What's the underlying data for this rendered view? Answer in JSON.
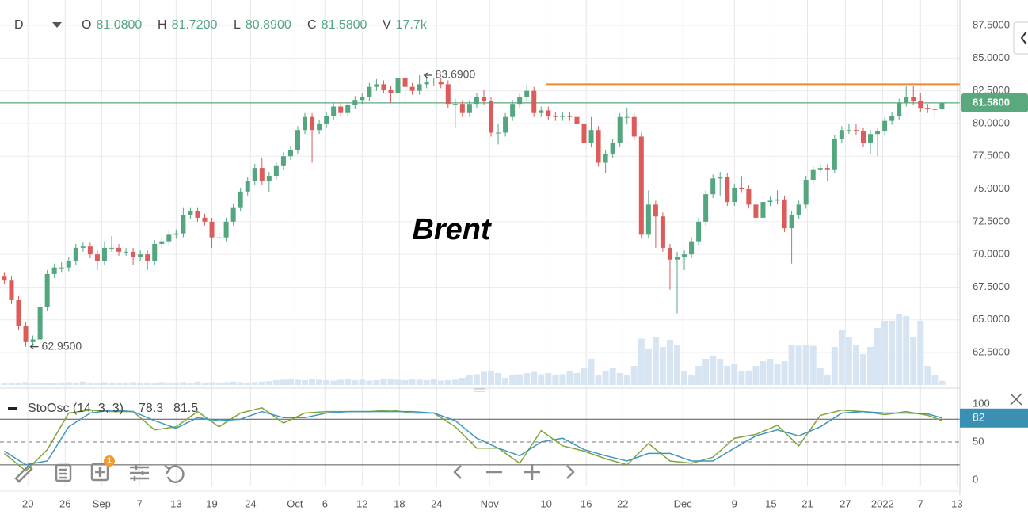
{
  "header": {
    "interval": "D",
    "ohlcv": [
      {
        "key": "O",
        "value": "81.0800"
      },
      {
        "key": "H",
        "value": "81.7200"
      },
      {
        "key": "L",
        "value": "80.8900"
      },
      {
        "key": "C",
        "value": "81.5800"
      },
      {
        "key": "V",
        "value": "17.7k"
      }
    ]
  },
  "toolbar": {
    "badge": "1"
  },
  "chart_data": [
    {
      "type": "candlestick",
      "title": "Brent",
      "open": [
        68.3,
        68.0,
        66.5,
        64.5,
        63.3,
        63.5,
        66.0,
        68.5,
        69.0,
        69.0,
        69.5,
        70.5,
        70.6,
        70.0,
        69.5,
        70.5,
        70.5,
        70.2,
        70.2,
        69.8,
        70.0,
        69.5,
        70.8,
        71.0,
        71.5,
        71.6,
        73.0,
        73.3,
        72.8,
        72.5,
        71.3,
        71.3,
        72.5,
        73.6,
        74.8,
        75.6,
        76.6,
        75.6,
        76.0,
        76.8,
        77.5,
        78.0,
        79.5,
        80.5,
        79.5,
        80.0,
        80.6,
        81.3,
        80.8,
        81.4,
        81.8,
        82.0,
        82.8,
        83.0,
        82.6,
        82.3,
        83.5,
        82.8,
        82.5,
        83.0,
        83.2,
        83.2,
        83.0,
        81.5,
        81.5,
        80.8,
        81.5,
        82.0,
        81.7,
        79.3,
        79.3,
        80.5,
        81.5,
        82.0,
        82.5,
        80.8,
        81.0,
        80.6,
        80.5,
        80.6,
        80.5,
        80.0,
        78.5,
        79.5,
        77.0,
        77.7,
        78.5,
        80.5,
        80.5,
        79.0,
        71.5,
        73.8,
        72.9,
        70.5,
        69.6,
        69.8,
        70.0,
        71.0,
        72.5,
        74.6,
        75.8,
        75.9,
        74.0,
        75.1,
        75.0,
        73.8,
        72.8,
        74.0,
        74.1,
        74.2,
        72.0,
        73.0,
        73.8,
        75.7,
        76.5,
        76.6,
        76.5,
        78.8,
        79.5,
        79.5,
        79.4,
        78.5,
        79.2,
        79.4,
        80.2,
        80.6,
        81.6,
        82.0,
        81.7,
        81.2,
        81.1,
        81.08
      ],
      "high": [
        68.6,
        68.3,
        66.8,
        64.8,
        63.8,
        66.3,
        68.8,
        69.3,
        69.4,
        69.8,
        70.8,
        70.9,
        70.9,
        70.3,
        71.0,
        71.4,
        70.8,
        70.5,
        70.5,
        70.3,
        70.3,
        71.1,
        71.3,
        71.8,
        71.9,
        73.6,
        73.6,
        73.6,
        73.1,
        72.8,
        71.9,
        72.8,
        73.9,
        75.1,
        75.9,
        76.9,
        77.4,
        76.3,
        77.1,
        77.8,
        78.3,
        79.8,
        80.8,
        80.8,
        80.3,
        80.9,
        81.6,
        81.6,
        81.7,
        82.1,
        82.3,
        83.1,
        83.4,
        83.3,
        82.9,
        83.6,
        83.6,
        83.1,
        83.69,
        83.5,
        83.5,
        83.5,
        83.3,
        81.9,
        81.8,
        81.8,
        82.3,
        82.6,
        82.0,
        80.0,
        80.8,
        81.8,
        82.3,
        83.0,
        82.8,
        81.3,
        81.3,
        80.9,
        80.9,
        80.9,
        80.8,
        80.3,
        80.5,
        79.8,
        78.0,
        78.8,
        80.8,
        81.2,
        80.8,
        79.3,
        74.9,
        74.1,
        73.2,
        70.8,
        70.2,
        70.3,
        71.3,
        72.8,
        74.9,
        76.1,
        76.3,
        76.2,
        75.4,
        76.0,
        75.3,
        74.1,
        74.3,
        74.4,
        74.9,
        74.5,
        73.3,
        74.1,
        76.0,
        76.8,
        76.9,
        76.9,
        79.1,
        79.8,
        80.0,
        80.0,
        79.7,
        79.5,
        79.7,
        80.5,
        80.9,
        81.9,
        82.9,
        82.9,
        82.3,
        81.5,
        81.4,
        81.72
      ],
      "low": [
        67.7,
        66.2,
        64.2,
        62.95,
        63.0,
        63.2,
        65.7,
        68.2,
        68.6,
        68.7,
        69.2,
        70.2,
        69.7,
        68.8,
        69.2,
        70.2,
        69.9,
        69.9,
        69.2,
        69.5,
        68.8,
        69.2,
        70.5,
        70.7,
        71.2,
        71.3,
        72.7,
        72.5,
        72.2,
        70.5,
        70.6,
        71.0,
        72.2,
        73.3,
        74.5,
        75.3,
        75.3,
        74.8,
        75.7,
        76.5,
        77.2,
        77.7,
        79.2,
        77.0,
        79.2,
        79.7,
        80.3,
        80.5,
        80.5,
        81.1,
        81.5,
        81.7,
        82.5,
        82.3,
        81.6,
        82.0,
        81.2,
        82.2,
        82.2,
        82.7,
        82.9,
        82.7,
        81.2,
        79.7,
        80.5,
        80.5,
        81.2,
        81.4,
        79.0,
        78.4,
        79.0,
        80.2,
        81.2,
        81.7,
        80.5,
        80.5,
        80.3,
        80.2,
        80.2,
        80.2,
        79.2,
        78.2,
        78.2,
        76.7,
        76.2,
        77.4,
        78.2,
        80.0,
        78.7,
        71.2,
        71.2,
        70.5,
        70.2,
        67.3,
        65.5,
        68.8,
        69.7,
        70.7,
        72.2,
        74.3,
        74.5,
        73.7,
        73.7,
        74.7,
        73.5,
        72.5,
        72.5,
        73.7,
        73.8,
        71.7,
        69.3,
        72.7,
        73.5,
        75.4,
        76.2,
        75.6,
        76.2,
        78.5,
        79.2,
        79.1,
        78.2,
        77.7,
        77.5,
        79.1,
        79.9,
        80.3,
        81.3,
        81.4,
        80.9,
        80.8,
        80.5,
        80.89
      ],
      "close": [
        68.0,
        66.5,
        64.5,
        63.3,
        63.5,
        66.0,
        68.5,
        69.0,
        69.0,
        69.5,
        70.5,
        70.6,
        70.0,
        69.5,
        70.5,
        70.5,
        70.2,
        70.2,
        69.8,
        70.0,
        69.5,
        70.8,
        71.0,
        71.5,
        71.6,
        73.0,
        73.3,
        72.8,
        72.5,
        71.3,
        71.3,
        72.5,
        73.6,
        74.8,
        75.6,
        76.6,
        75.6,
        76.0,
        76.8,
        77.5,
        78.0,
        79.5,
        80.5,
        79.5,
        80.0,
        80.6,
        81.3,
        80.8,
        81.4,
        81.8,
        82.0,
        82.8,
        83.0,
        82.6,
        82.3,
        83.5,
        82.8,
        82.5,
        83.0,
        83.2,
        83.2,
        83.0,
        81.5,
        81.5,
        80.8,
        81.5,
        82.0,
        81.7,
        79.3,
        79.3,
        80.5,
        81.5,
        82.0,
        82.5,
        80.8,
        81.0,
        80.6,
        80.5,
        80.6,
        80.5,
        80.0,
        78.5,
        79.5,
        77.0,
        77.7,
        78.5,
        80.5,
        80.5,
        79.0,
        71.5,
        73.8,
        72.9,
        70.5,
        69.6,
        69.8,
        70.0,
        71.0,
        72.5,
        74.6,
        75.8,
        75.9,
        74.0,
        75.1,
        75.0,
        73.8,
        72.8,
        74.0,
        74.1,
        74.2,
        72.0,
        73.0,
        73.8,
        75.7,
        76.5,
        76.6,
        76.5,
        78.8,
        79.5,
        79.5,
        79.4,
        78.5,
        79.2,
        79.4,
        80.2,
        80.6,
        81.6,
        82.0,
        81.7,
        81.2,
        81.1,
        81.08,
        81.58
      ],
      "up_color": "#54a67f",
      "down_color": "#dc5b5b",
      "volume": {
        "values": [
          10,
          8,
          8,
          12,
          10,
          8,
          10,
          8,
          10,
          12,
          10,
          14,
          8,
          10,
          12,
          10,
          8,
          10,
          12,
          10,
          8,
          10,
          12,
          10,
          8,
          12,
          10,
          14,
          10,
          12,
          10,
          12,
          14,
          12,
          10,
          12,
          14,
          16,
          20,
          22,
          24,
          22,
          20,
          24,
          22,
          20,
          18,
          22,
          24,
          20,
          22,
          18,
          20,
          24,
          26,
          22,
          20,
          24,
          22,
          20,
          24,
          18,
          20,
          22,
          30,
          40,
          45,
          55,
          60,
          50,
          30,
          40,
          45,
          50,
          55,
          45,
          50,
          40,
          45,
          60,
          50,
          70,
          110,
          40,
          60,
          70,
          50,
          40,
          80,
          195,
          150,
          200,
          160,
          190,
          170,
          60,
          40,
          80,
          110,
          120,
          110,
          80,
          90,
          60,
          60,
          80,
          100,
          110,
          90,
          100,
          170,
          165,
          170,
          165,
          70,
          40,
          160,
          230,
          200,
          170,
          130,
          160,
          240,
          270,
          270,
          300,
          290,
          200,
          270,
          80,
          40,
          17.7
        ],
        "vlim": [
          0,
          400
        ],
        "color": "#d7e5f3"
      },
      "xlim": [
        -0.6,
        133.5
      ],
      "xticks": [
        {
          "value": 3.3,
          "label": "20"
        },
        {
          "value": 8.5,
          "label": "26"
        },
        {
          "value": 13.6,
          "label": "Sep"
        },
        {
          "value": 18.9,
          "label": "7"
        },
        {
          "value": 24,
          "label": "13"
        },
        {
          "value": 29,
          "label": "19"
        },
        {
          "value": 34.4,
          "label": "24"
        },
        {
          "value": 40.6,
          "label": "Oct"
        },
        {
          "value": 44.8,
          "label": "6"
        },
        {
          "value": 50,
          "label": "12"
        },
        {
          "value": 55.2,
          "label": "18"
        },
        {
          "value": 60.4,
          "label": "24"
        },
        {
          "value": 67.8,
          "label": "Nov"
        },
        {
          "value": 75.7,
          "label": "10"
        },
        {
          "value": 81.3,
          "label": "16"
        },
        {
          "value": 86.4,
          "label": "22"
        },
        {
          "value": 94.8,
          "label": "Dec"
        },
        {
          "value": 102,
          "label": "9"
        },
        {
          "value": 107.1,
          "label": "15"
        },
        {
          "value": 112.2,
          "label": "21"
        },
        {
          "value": 117.5,
          "label": "27"
        },
        {
          "value": 122.7,
          "label": "2022"
        },
        {
          "value": 128,
          "label": "7"
        },
        {
          "value": 133.1,
          "label": "13"
        }
      ],
      "ylim": [
        59.9,
        89.44
      ],
      "yticks": [
        {
          "value": 62.5,
          "label": "62.5000"
        },
        {
          "value": 65,
          "label": "65.0000"
        },
        {
          "value": 67.5,
          "label": "67.5000"
        },
        {
          "value": 70,
          "label": "70.0000"
        },
        {
          "value": 72.5,
          "label": "72.5000"
        },
        {
          "value": 75,
          "label": "75.0000"
        },
        {
          "value": 77.5,
          "label": "77.5000"
        },
        {
          "value": 80,
          "label": "80.0000"
        },
        {
          "value": 82.5,
          "label": "82.5000"
        },
        {
          "value": 85,
          "label": "85.0000"
        },
        {
          "value": 87.5,
          "label": "87.5000"
        }
      ],
      "grid": true,
      "last_price": {
        "value": 81.58,
        "label": "81.5800",
        "color": "#5aa97e"
      },
      "levels": [
        {
          "value": 83.0,
          "from": 75.7,
          "color": "#f0892c"
        }
      ],
      "annotations": [
        {
          "x": 58,
          "value": 83.69,
          "label": "83.6900"
        },
        {
          "x": 3,
          "value": 62.95,
          "label": "62.9500"
        }
      ]
    },
    {
      "type": "line",
      "title": "StoOsc (14, 3, 3)",
      "series": [
        {
          "color": "#80a53a",
          "last_label": "78.3",
          "x": [
            0,
            3,
            6,
            9,
            12,
            15,
            18,
            21,
            24,
            27,
            30,
            33,
            36,
            39,
            42,
            45,
            48,
            51,
            54,
            57,
            60,
            63,
            66,
            69,
            72,
            75,
            78,
            81,
            84,
            87,
            90,
            93,
            96,
            99,
            102,
            105,
            108,
            111,
            114,
            117,
            120,
            123,
            126,
            129,
            131
          ],
          "values": [
            35,
            12,
            40,
            88,
            92,
            90,
            90,
            66,
            70,
            90,
            70,
            88,
            95,
            75,
            88,
            90,
            90,
            90,
            92,
            88,
            88,
            70,
            42,
            42,
            22,
            65,
            45,
            38,
            28,
            20,
            48,
            25,
            22,
            30,
            55,
            60,
            72,
            45,
            85,
            92,
            90,
            86,
            90,
            85,
            78.3
          ]
        },
        {
          "color": "#3f97c0",
          "last_label": "81.5",
          "x": [
            0,
            3,
            6,
            9,
            12,
            15,
            18,
            21,
            24,
            27,
            30,
            33,
            36,
            39,
            42,
            45,
            48,
            51,
            54,
            57,
            60,
            63,
            66,
            69,
            72,
            75,
            78,
            81,
            84,
            87,
            90,
            93,
            96,
            99,
            102,
            105,
            108,
            111,
            114,
            117,
            120,
            123,
            126,
            129,
            131
          ],
          "values": [
            38,
            20,
            25,
            70,
            88,
            92,
            90,
            78,
            68,
            82,
            78,
            80,
            90,
            82,
            82,
            88,
            90,
            90,
            90,
            90,
            88,
            78,
            55,
            42,
            32,
            50,
            55,
            40,
            32,
            25,
            35,
            35,
            25,
            25,
            42,
            58,
            66,
            58,
            70,
            88,
            90,
            88,
            88,
            87,
            81.5
          ]
        }
      ],
      "ylim": [
        -8.3,
        114.6
      ],
      "yticks": [
        0,
        50,
        100
      ],
      "levels": [
        20,
        50,
        80
      ],
      "badge": "82",
      "badge_color": "#3a8fb3"
    }
  ]
}
